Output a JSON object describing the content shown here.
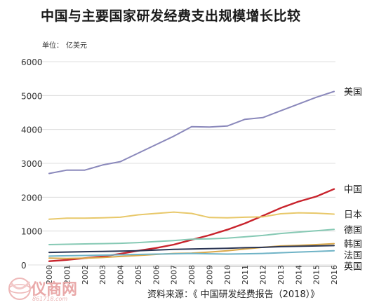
{
  "title": "中国与主要国家研发经费支出规模增长比较",
  "unit_label": "单位：",
  "unit_value": "亿美元",
  "source": "资料来源：《 中国研发经费报告（2018）》",
  "watermark": {
    "name": "仪商网",
    "url": "861718.com"
  },
  "chart_data": {
    "type": "line",
    "x": [
      "2000",
      "2001",
      "2002",
      "2003",
      "2004",
      "2005",
      "2006",
      "2007",
      "2008",
      "2009",
      "2010",
      "2011",
      "2012",
      "2013",
      "2014",
      "2015",
      "2016"
    ],
    "ylim": [
      0,
      6000
    ],
    "yticks": [
      0,
      1000,
      2000,
      3000,
      4000,
      5000,
      6000
    ],
    "grid": true,
    "legend_placement": "right, labels at line ends",
    "series": [
      {
        "name": "美国",
        "color": "#8a88bb",
        "values": [
          2700,
          2800,
          2800,
          2950,
          3050,
          3300,
          3550,
          3800,
          4080,
          4070,
          4100,
          4300,
          4350,
          4550,
          4750,
          4950,
          5120
        ]
      },
      {
        "name": "中国",
        "color": "#c8232c",
        "values": [
          110,
          150,
          200,
          250,
          330,
          420,
          500,
          600,
          740,
          880,
          1040,
          1230,
          1450,
          1680,
          1870,
          2020,
          2240
        ]
      },
      {
        "name": "日本",
        "color": "#e8c86a",
        "values": [
          1350,
          1380,
          1380,
          1390,
          1410,
          1480,
          1520,
          1560,
          1520,
          1400,
          1390,
          1410,
          1420,
          1510,
          1540,
          1530,
          1500
        ]
      },
      {
        "name": "德国",
        "color": "#86c9b4",
        "values": [
          600,
          610,
          620,
          630,
          640,
          660,
          690,
          720,
          760,
          770,
          790,
          830,
          870,
          930,
          970,
          1010,
          1050
        ]
      },
      {
        "name": "韩国",
        "color": "#d9a84a",
        "values": [
          200,
          190,
          200,
          220,
          250,
          280,
          310,
          340,
          350,
          380,
          420,
          470,
          520,
          560,
          580,
          600,
          630
        ]
      },
      {
        "name": "法国",
        "color": "#2a3554",
        "values": [
          370,
          380,
          390,
          400,
          410,
          420,
          440,
          460,
          470,
          480,
          490,
          510,
          520,
          540,
          550,
          560,
          570
        ]
      },
      {
        "name": "英国",
        "color": "#6fb3c6",
        "values": [
          260,
          270,
          280,
          290,
          300,
          310,
          320,
          330,
          340,
          330,
          320,
          330,
          340,
          360,
          380,
          400,
          420
        ]
      }
    ]
  }
}
